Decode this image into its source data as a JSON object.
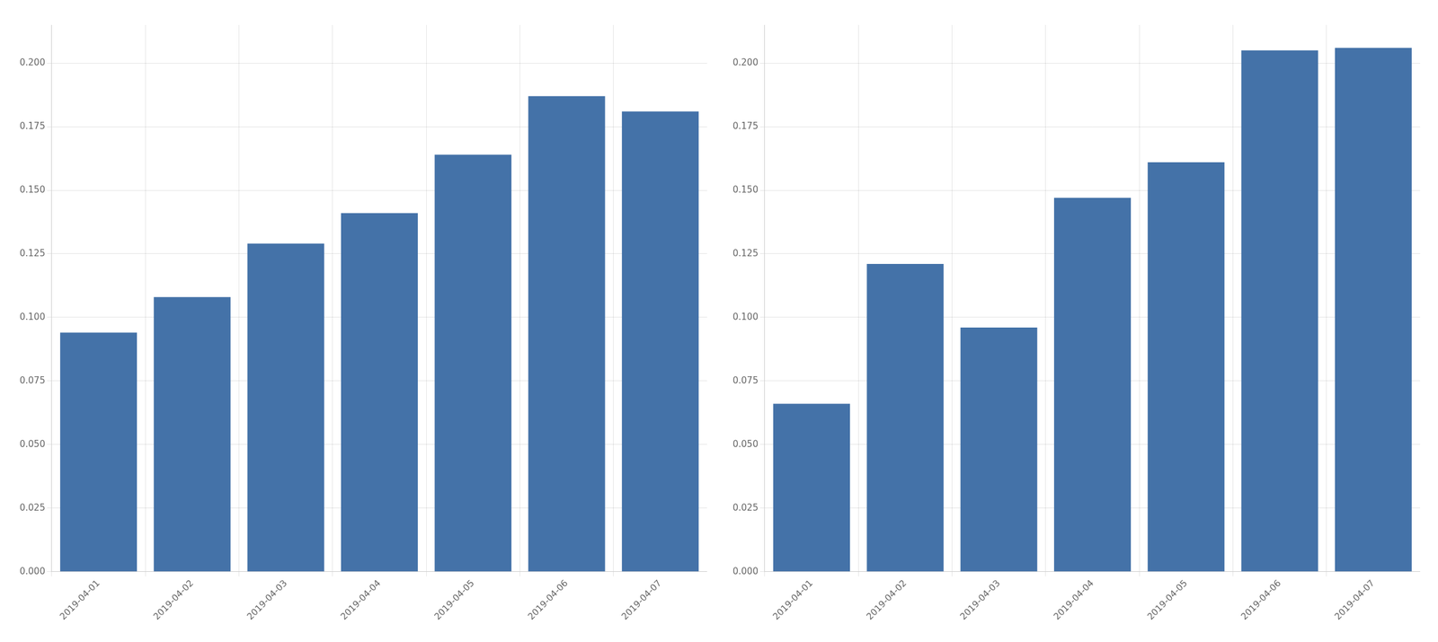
{
  "chart_data": [
    {
      "type": "bar",
      "categories": [
        "2019-04-01",
        "2019-04-02",
        "2019-04-03",
        "2019-04-04",
        "2019-04-05",
        "2019-04-06",
        "2019-04-07"
      ],
      "values": [
        0.094,
        0.108,
        0.129,
        0.141,
        0.164,
        0.187,
        0.181
      ],
      "color": "#4472a8",
      "ylim": [
        0,
        0.215
      ],
      "yticks": [
        {
          "value": 0,
          "label": "0.000"
        },
        0.025,
        {
          "value": 0.05,
          "label": "0.050"
        },
        0.075,
        {
          "value": 0.1,
          "label": "0.100"
        },
        0.125,
        {
          "value": 0.15,
          "label": "0.150"
        },
        0.175,
        {
          "value": 0.2,
          "label": "0.200"
        }
      ],
      "grid": true
    },
    {
      "type": "bar",
      "categories": [
        "2019-04-01",
        "2019-04-02",
        "2019-04-03",
        "2019-04-04",
        "2019-04-05",
        "2019-04-06",
        "2019-04-07"
      ],
      "values": [
        0.066,
        0.121,
        0.096,
        0.147,
        0.161,
        0.205,
        0.206
      ],
      "color": "#4472a8",
      "ylim": [
        0,
        0.215
      ],
      "yticks": [
        {
          "value": 0,
          "label": "0.000"
        },
        0.025,
        {
          "value": 0.05,
          "label": "0.050"
        },
        0.075,
        {
          "value": 0.1,
          "label": "0.100"
        },
        0.125,
        {
          "value": 0.15,
          "label": "0.150"
        },
        0.175,
        {
          "value": 0.2,
          "label": "0.200"
        }
      ],
      "grid": true
    }
  ]
}
